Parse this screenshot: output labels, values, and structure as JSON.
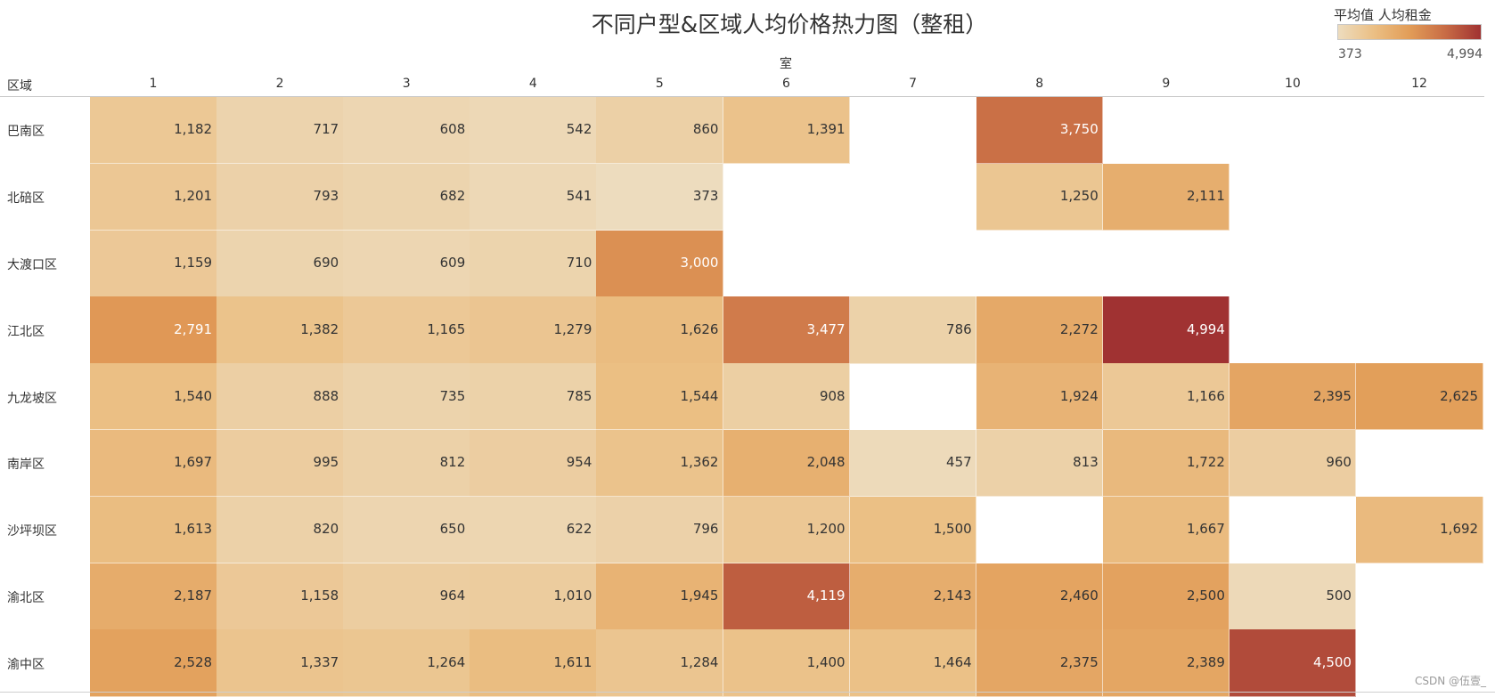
{
  "chart_data": {
    "type": "heatmap",
    "title": "不同户型&区域人均价格热力图（整租）",
    "xlabel": "室",
    "ylabel": "区域",
    "x_categories": [
      "1",
      "2",
      "3",
      "4",
      "5",
      "6",
      "7",
      "8",
      "9",
      "10",
      "12"
    ],
    "y_categories": [
      "巴南区",
      "北碚区",
      "大渡口区",
      "江北区",
      "九龙坡区",
      "南岸区",
      "沙坪坝区",
      "渝北区",
      "渝中区"
    ],
    "values": [
      [
        1182,
        717,
        608,
        542,
        860,
        1391,
        null,
        3750,
        null,
        null,
        null
      ],
      [
        1201,
        793,
        682,
        541,
        373,
        null,
        null,
        1250,
        2111,
        null,
        null
      ],
      [
        1159,
        690,
        609,
        710,
        3000,
        null,
        null,
        null,
        null,
        null,
        null
      ],
      [
        2791,
        1382,
        1165,
        1279,
        1626,
        3477,
        786,
        2272,
        4994,
        null,
        null
      ],
      [
        1540,
        888,
        735,
        785,
        1544,
        908,
        null,
        1924,
        1166,
        2395,
        2625
      ],
      [
        1697,
        995,
        812,
        954,
        1362,
        2048,
        457,
        813,
        1722,
        960,
        null
      ],
      [
        1613,
        820,
        650,
        622,
        796,
        1200,
        1500,
        null,
        1667,
        null,
        1692
      ],
      [
        2187,
        1158,
        964,
        1010,
        1945,
        4119,
        2143,
        2460,
        2500,
        500,
        null
      ],
      [
        2528,
        1337,
        1264,
        1611,
        1284,
        1400,
        1464,
        2375,
        2389,
        4500,
        null
      ]
    ],
    "value_labels": [
      [
        "1,182",
        "717",
        "608",
        "542",
        "860",
        "1,391",
        null,
        "3,750",
        null,
        null,
        null
      ],
      [
        "1,201",
        "793",
        "682",
        "541",
        "373",
        null,
        null,
        "1,250",
        "2,111",
        null,
        null
      ],
      [
        "1,159",
        "690",
        "609",
        "710",
        "3,000",
        null,
        null,
        null,
        null,
        null,
        null
      ],
      [
        "2,791",
        "1,382",
        "1,165",
        "1,279",
        "1,626",
        "3,477",
        "786",
        "2,272",
        "4,994",
        null,
        null
      ],
      [
        "1,540",
        "888",
        "735",
        "785",
        "1,544",
        "908",
        null,
        "1,924",
        "1,166",
        "2,395",
        "2,625"
      ],
      [
        "1,697",
        "995",
        "812",
        "954",
        "1,362",
        "2,048",
        "457",
        "813",
        "1,722",
        "960",
        null
      ],
      [
        "1,613",
        "820",
        "650",
        "622",
        "796",
        "1,200",
        "1,500",
        null,
        "1,667",
        null,
        "1,692"
      ],
      [
        "2,187",
        "1,158",
        "964",
        "1,010",
        "1,945",
        "4,119",
        "2,143",
        "2,460",
        "2,500",
        "500",
        null
      ],
      [
        "2,528",
        "1,337",
        "1,264",
        "1,611",
        "1,284",
        "1,400",
        "1,464",
        "2,375",
        "2,389",
        "4,500",
        null
      ]
    ],
    "legend": {
      "title": "平均值 人均租金",
      "min": 373,
      "max": 4994,
      "min_label": "373",
      "max_label": "4,994",
      "placement": "top-right"
    },
    "color_scale": [
      "#eddcbe",
      "#ebbf84",
      "#e29d58",
      "#c86c45",
      "#a03232"
    ],
    "grid": false
  },
  "watermark": "CSDN @伍壹_"
}
